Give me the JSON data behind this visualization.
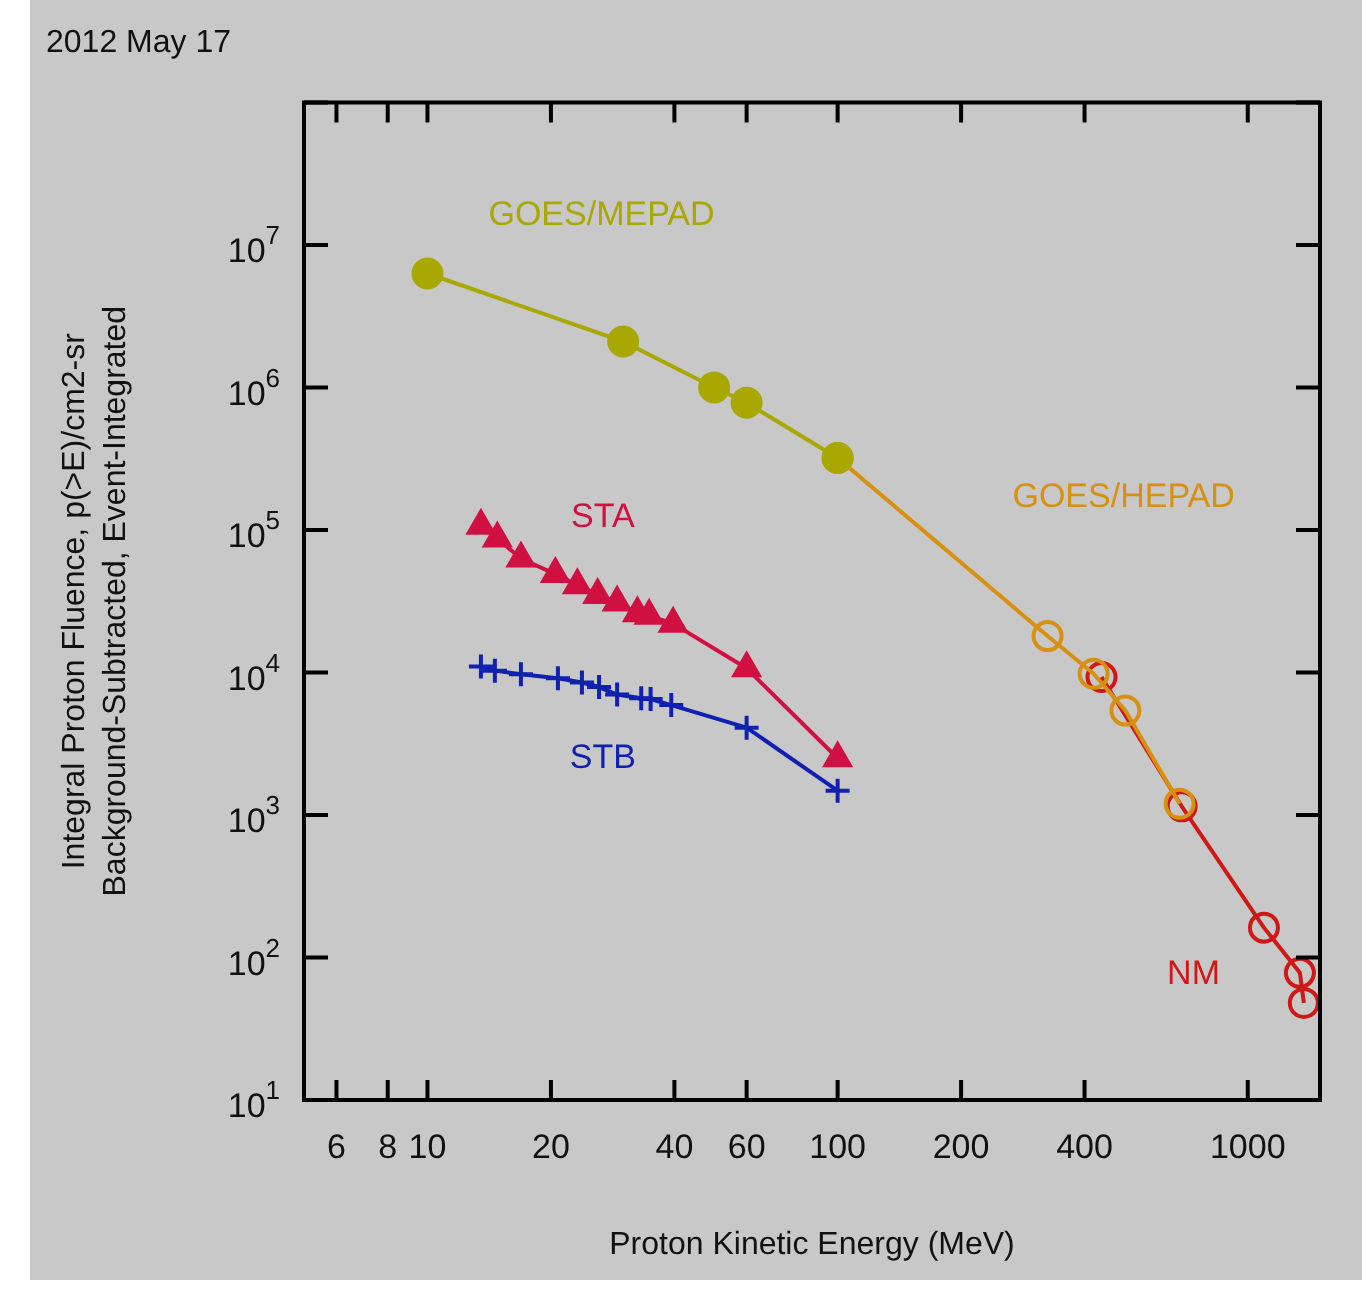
{
  "chart_data": {
    "type": "line",
    "title": "2012 May 17",
    "xlabel": "Proton Kinetic Energy (MeV)",
    "ylabel": "Integral Proton Fluence, p(>E)/cm2-sr\nBackground-Subtracted, Event-Integrated",
    "log": "xy",
    "grid": false,
    "legend": false,
    "line_style": "solid",
    "xlim": [
      5,
      1500
    ],
    "ylim": [
      10,
      100000000
    ],
    "xticks": [
      6,
      8,
      10,
      20,
      40,
      60,
      100,
      200,
      400,
      1000
    ],
    "yticks": [
      {
        "value": 10,
        "label": "10$^{1}$"
      },
      {
        "value": 100,
        "label": "10$^{2}$"
      },
      {
        "value": 1000,
        "label": "10$^{3}$"
      },
      {
        "value": 10000,
        "label": "10$^{4}$"
      },
      {
        "value": 100000,
        "label": "10$^{5}$"
      },
      {
        "value": 1000000,
        "label": "10$^{6}$"
      },
      {
        "value": 10000000,
        "label": "10$^{7}$"
      },
      {
        "value": 100000000,
        "label": null
      }
    ],
    "series": [
      {
        "name": "GOES/MEPAD",
        "color": "#a8a800",
        "marker": "circle",
        "x": [
          10,
          30,
          50,
          60,
          100
        ],
        "values": [
          6300000,
          2100000,
          1000000,
          780000,
          320000
        ]
      },
      {
        "name": "STA",
        "color": "#d01040",
        "marker": "triangle",
        "x": [
          13.5,
          14.8,
          16.9,
          20.5,
          23.2,
          26,
          29,
          32.5,
          34.7,
          39.7,
          60,
          100
        ],
        "values": [
          107000,
          87000,
          63000,
          49000,
          41000,
          35000,
          31000,
          26000,
          25000,
          22000,
          10700,
          2500
        ]
      },
      {
        "name": "STB",
        "color": "#1020b0",
        "marker": "cross",
        "x": [
          13.5,
          14.6,
          16.9,
          20.8,
          23.8,
          26.2,
          29,
          33.2,
          35,
          39.3,
          60,
          100
        ],
        "values": [
          11000,
          10300,
          9700,
          9100,
          8500,
          7900,
          7000,
          6600,
          6500,
          5900,
          4100,
          1480
        ]
      },
      {
        "name": "GOES/HEPAD",
        "color": "#d89010",
        "marker": "circle",
        "x": [
          100,
          325,
          421,
          503,
          682
        ],
        "values": [
          320000,
          18000,
          9800,
          5400,
          1200
        ]
      },
      {
        "name": "NM",
        "color": "#d01818",
        "marker": "circle",
        "x": [
          440,
          690,
          1095,
          1340,
          1370
        ],
        "values": [
          9300,
          1150,
          162,
          78,
          48
        ]
      }
    ]
  }
}
